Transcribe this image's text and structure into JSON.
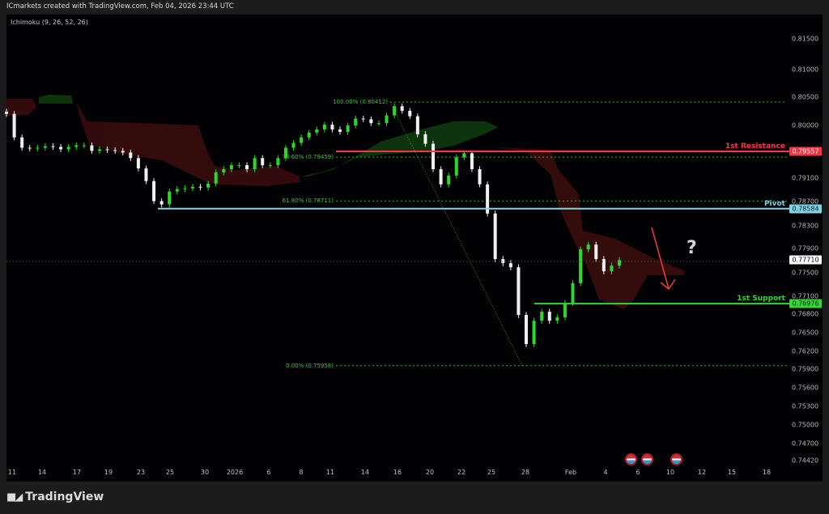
{
  "header": {
    "title": "ICmarkets created with TradingView.com, Feb 04, 2026 23:44 UTC"
  },
  "indicator": {
    "label": "Ichimoku (9, 26, 52, 26)"
  },
  "branding": {
    "logo_text": "TradingView"
  },
  "annotation": {
    "question_mark": "?",
    "arrow_color": "#f23b3b"
  },
  "colors": {
    "up": "#2bd92b",
    "down": "#f0f0f0",
    "resistance": "#f23645",
    "pivot": "#7fd3e3",
    "support": "#33d633",
    "fib": "#2fb52f",
    "cloud_bull": "#0f3a0f",
    "cloud_bear": "#3a0d0d"
  },
  "chart_data": {
    "type": "candlestick",
    "title": "",
    "x_tick_labels": [
      "11",
      "14",
      "17",
      "19",
      "23",
      "25",
      "30",
      "2026",
      "6",
      "8",
      "11",
      "14",
      "16",
      "20",
      "22",
      "25",
      "28",
      "Feb",
      "4",
      "6",
      "10",
      "12",
      "15",
      "18"
    ],
    "y_tick_labels": [
      "0.81500",
      "0.81000",
      "0.80500",
      "0.80000",
      "0.79100",
      "0.78700",
      "0.78300",
      "0.77900",
      "0.77500",
      "0.77100",
      "0.76800",
      "0.76500",
      "0.76200",
      "0.75900",
      "0.75600",
      "0.75300",
      "0.75000",
      "0.74700",
      "0.74420"
    ],
    "y_range": [
      0.7442,
      0.815
    ],
    "closes": [
      0.80204,
      0.79796,
      0.79619,
      0.79605,
      0.79619,
      0.79646,
      0.79633,
      0.79592,
      0.79633,
      0.7966,
      0.7966,
      0.79565,
      0.79592,
      0.79578,
      0.79565,
      0.79537,
      0.79442,
      0.79265,
      0.79048,
      0.78707,
      0.78653,
      0.78871,
      0.78912,
      0.78925,
      0.78952,
      0.78939,
      0.79007,
      0.79197,
      0.79252,
      0.7932,
      0.7932,
      0.79252,
      0.79442,
      0.7932,
      0.7932,
      0.79442,
      0.79619,
      0.79701,
      0.79796,
      0.79878,
      0.79932,
      0.80014,
      0.79932,
      0.79891,
      0.8,
      0.80122,
      0.80109,
      0.80041,
      0.80041,
      0.80177,
      0.8034,
      0.80259,
      0.80163,
      0.7985,
      0.79687,
      0.79252,
      0.78993,
      0.79143,
      0.79456,
      0.79524,
      0.79252,
      0.78993,
      0.78503,
      0.77726,
      0.77658,
      0.77591,
      0.76786,
      0.76316,
      0.76692,
      0.7684,
      0.76692,
      0.76746,
      0.76987,
      0.77323,
      0.77887,
      0.77968,
      0.77726,
      0.77524,
      0.77618,
      0.7771
    ],
    "last_price": "0.77710",
    "levels": [
      {
        "name": "1st Resistance",
        "price": "0.79557"
      },
      {
        "name": "Pivot",
        "price": "0.78584"
      },
      {
        "name": "1st Support",
        "price": "0.76976"
      }
    ],
    "fibonacci": [
      {
        "label": "100.00% (0.80412)",
        "price": 0.80412
      },
      {
        "label": "78.60% (0.79459)",
        "price": 0.79459
      },
      {
        "label": "61.80% (0.78711)",
        "price": 0.78711
      },
      {
        "label": "0.00% (0.75958)",
        "price": 0.75958
      }
    ],
    "events": [
      "US",
      "US",
      "US"
    ]
  }
}
